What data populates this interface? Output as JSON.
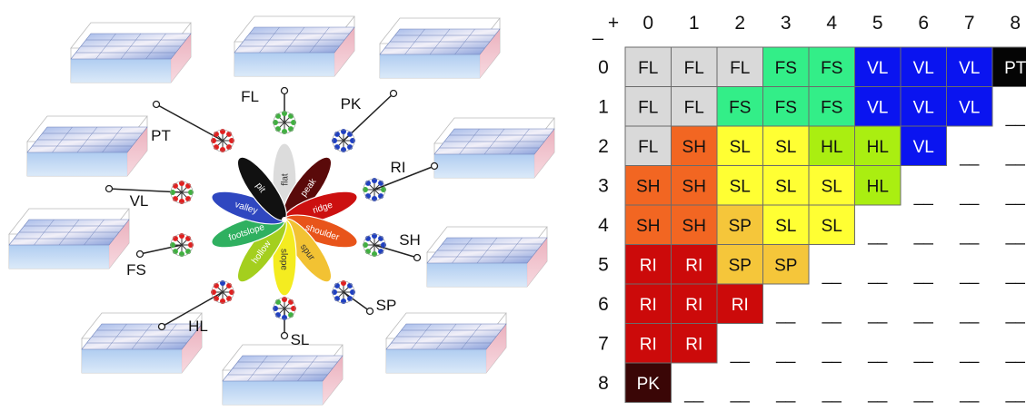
{
  "diagram": {
    "petals": [
      {
        "label": "flat",
        "code": "FL",
        "color": "#dcdcdc",
        "text": "#333333"
      },
      {
        "label": "peak",
        "code": "PK",
        "color": "#5a0a0a",
        "text": "#ffffff"
      },
      {
        "label": "ridge",
        "code": "RI",
        "color": "#cc1010",
        "text": "#ffffff"
      },
      {
        "label": "shoulder",
        "code": "SH",
        "color": "#e8541a",
        "text": "#ffffff"
      },
      {
        "label": "spur",
        "code": "SP",
        "color": "#f2c233",
        "text": "#333333"
      },
      {
        "label": "slope",
        "code": "SL",
        "color": "#f4ec20",
        "text": "#333333"
      },
      {
        "label": "hollow",
        "code": "HL",
        "color": "#a4cf1e",
        "text": "#ffffff"
      },
      {
        "label": "footslope",
        "code": "FS",
        "color": "#2fb060",
        "text": "#ffffff"
      },
      {
        "label": "valley",
        "code": "VL",
        "color": "#2f47c0",
        "text": "#ffffff"
      },
      {
        "label": "pit",
        "code": "PT",
        "color": "#111111",
        "text": "#ffffff"
      }
    ],
    "pattern_colors": {
      "higher": "#e02020",
      "lower": "#2040c0",
      "equal": "#40b040"
    }
  },
  "table": {
    "corner_plus": "+",
    "corner_minus": "_",
    "col_headers": [
      "0",
      "1",
      "2",
      "3",
      "4",
      "5",
      "6",
      "7",
      "8"
    ],
    "row_headers": [
      "0",
      "1",
      "2",
      "3",
      "4",
      "5",
      "6",
      "7",
      "8"
    ],
    "empty_mark": "__",
    "rows": [
      [
        "FL",
        "FL",
        "FL",
        "FS",
        "FS",
        "VL",
        "VL",
        "VL",
        "PT"
      ],
      [
        "FL",
        "FL",
        "FS",
        "FS",
        "FS",
        "VL",
        "VL",
        "VL",
        ""
      ],
      [
        "FL",
        "SH",
        "SL",
        "SL",
        "HL",
        "HL",
        "VL",
        "",
        ""
      ],
      [
        "SH",
        "SH",
        "SL",
        "SL",
        "SL",
        "HL",
        "",
        "",
        ""
      ],
      [
        "SH",
        "SH",
        "SP",
        "SL",
        "SL",
        "",
        "",
        "",
        ""
      ],
      [
        "RI",
        "RI",
        "SP",
        "SP",
        "",
        "",
        "",
        "",
        ""
      ],
      [
        "RI",
        "RI",
        "RI",
        "",
        "",
        "",
        "",
        "",
        ""
      ],
      [
        "RI",
        "RI",
        "",
        "",
        "",
        "",
        "",
        "",
        ""
      ],
      [
        "PK",
        "",
        "",
        "",
        "",
        "",
        "",
        "",
        ""
      ]
    ],
    "class_colors": {
      "FL": "#d9d9d9",
      "FS": "#33ee88",
      "VL": "#0a14f0",
      "PT": "#050505",
      "SH": "#f26622",
      "SL": "#ffff33",
      "HL": "#aaee11",
      "SP": "#f5c63a",
      "RI": "#cc0a0a",
      "PK": "#3a0606"
    },
    "class_text_colors": {
      "FL": "#111111",
      "FS": "#111111",
      "VL": "#ffffff",
      "PT": "#ffffff",
      "SH": "#111111",
      "SL": "#111111",
      "HL": "#111111",
      "SP": "#111111",
      "RI": "#ffffff",
      "PK": "#ffffff"
    }
  }
}
